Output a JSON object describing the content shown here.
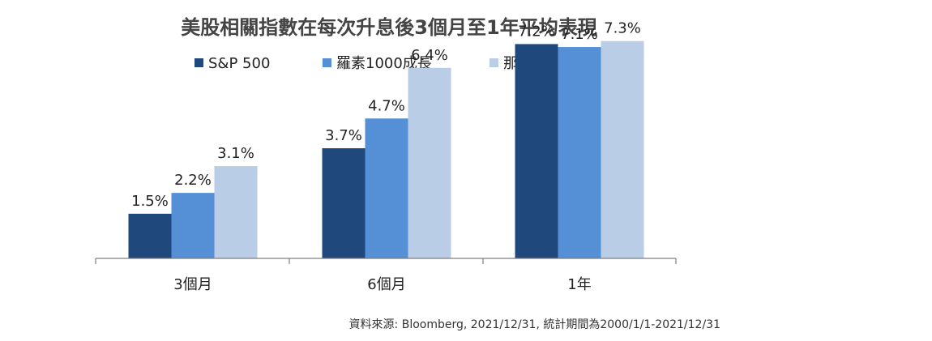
{
  "chart_data": {
    "type": "bar",
    "title": "美股相關指數在每次升息後3個月至1年平均表現",
    "categories": [
      "3個月",
      "6個月",
      "1年"
    ],
    "series": [
      {
        "name": "S&P 500",
        "values": [
          1.5,
          3.7,
          7.2
        ],
        "labels": [
          "1.5%",
          "3.7%",
          "7.2%"
        ],
        "color": "#1f497d"
      },
      {
        "name": "羅素1000成長",
        "values": [
          2.2,
          4.7,
          7.1
        ],
        "labels": [
          "2.2%",
          "4.7%",
          "7.1%"
        ],
        "color": "#5590d6"
      },
      {
        "name": "那斯達克",
        "values": [
          3.1,
          6.4,
          7.3
        ],
        "labels": [
          "3.1%",
          "6.4%",
          "7.3%"
        ],
        "color": "#b9cde6"
      }
    ],
    "ylim": [
      0,
      8
    ],
    "xlabel": "",
    "ylabel": "",
    "grid": false,
    "legend_position": "top",
    "source": "資料來源: Bloomberg, 2021/12/31, 統計期間為2000/1/1-2021/12/31"
  }
}
